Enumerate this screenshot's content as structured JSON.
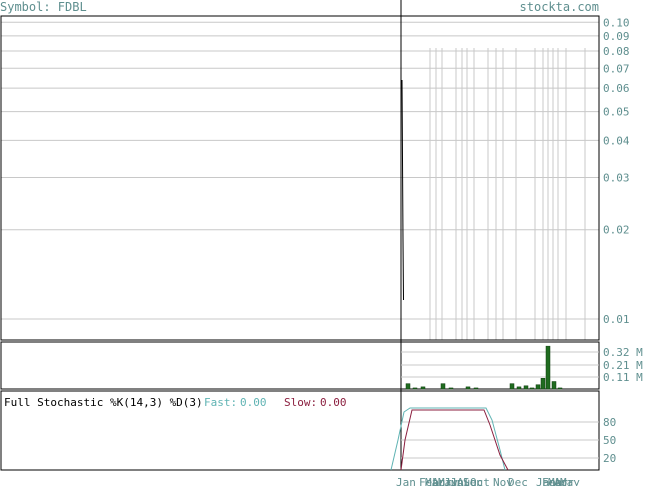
{
  "header": {
    "symbol_text": "Symbol: FDBL",
    "site": "stockta.com"
  },
  "colors": {
    "text_muted": "#5f8f8f",
    "grid": "#c8c8c8",
    "axis": "#000000",
    "volume_bar": "#1f6b1f",
    "fast_line": "#5fb3b3",
    "slow_line": "#8b1f3f",
    "price_line": "#000000"
  },
  "chart_data": [
    {
      "type": "line",
      "name": "price",
      "scale": "log",
      "ylim": [
        0.0085,
        0.105
      ],
      "y_ticks": [
        0.1,
        0.09,
        0.08,
        0.07,
        0.06,
        0.05,
        0.04,
        0.03,
        0.02,
        0.01
      ],
      "y_tick_labels": [
        "0.10",
        "0.09",
        "0.08",
        "0.07",
        "0.06",
        "0.05",
        "0.04",
        "0.03",
        "0.02",
        "0.01"
      ],
      "x_tick_labels": [
        "Jan",
        "Feb",
        "Mar",
        "Apr",
        "May",
        "Jun",
        "Jul",
        "Aug",
        "Sep",
        "Oct",
        "Nov",
        "Dec",
        "Jan",
        "Feb",
        "Mar",
        "Apr",
        "May"
      ],
      "grid": true
    },
    {
      "type": "bar",
      "name": "volume",
      "y_tick_labels": [
        "0.32 M",
        "0.21 M",
        "0.11 M"
      ],
      "values": [
        0.05,
        0.01,
        0.02,
        0.0,
        0.05,
        0.01,
        0.02,
        0.01,
        0.0,
        0.0,
        0.05,
        0.02,
        0.03,
        0.01,
        0.04,
        0.1,
        0.4,
        0.07,
        0.01
      ]
    },
    {
      "type": "line",
      "name": "stochastic",
      "title": "Full Stochastic %K(14,3) %D(3)",
      "fast_label": "Fast:",
      "fast_value": "0.00",
      "slow_label": "Slow:",
      "slow_value": "0.00",
      "ylim": [
        0,
        100
      ],
      "y_ticks": [
        80,
        50,
        20
      ],
      "y_tick_labels": [
        "80",
        "50",
        "20"
      ]
    }
  ]
}
